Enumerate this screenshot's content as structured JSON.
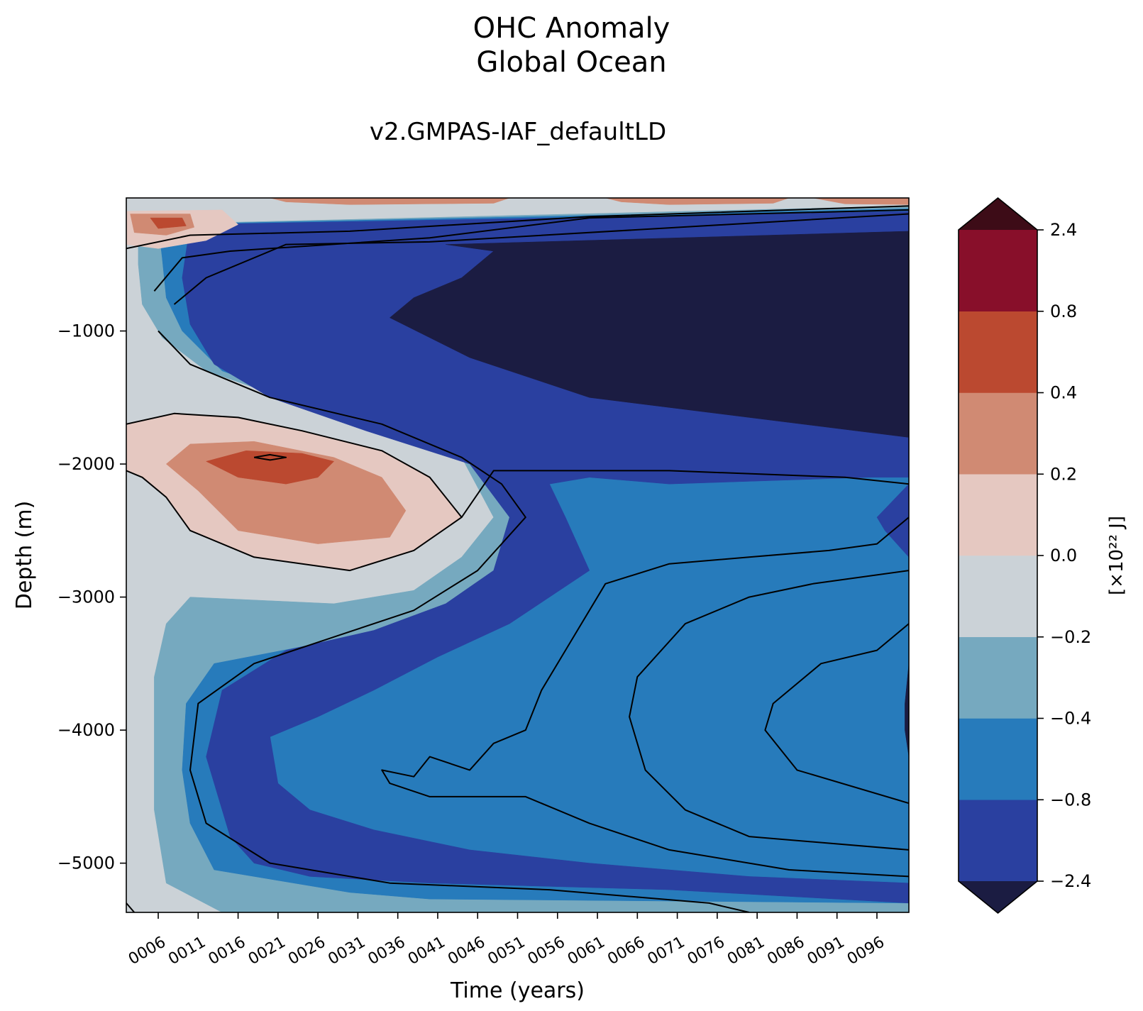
{
  "chart_data": {
    "type": "heatmap",
    "subtype": "filled-contour",
    "title": [
      "OHC Anomaly",
      "Global Ocean"
    ],
    "subtitle": "v2.GMPAS-IAF_defaultLD",
    "xlabel": "Time (years)",
    "ylabel": "Depth (m)",
    "xlim": [
      2,
      100
    ],
    "ylim": [
      -5370,
      0
    ],
    "x_ticks": [
      {
        "value": 6,
        "label": "0006"
      },
      {
        "value": 11,
        "label": "0011"
      },
      {
        "value": 16,
        "label": "0016"
      },
      {
        "value": 21,
        "label": "0021"
      },
      {
        "value": 26,
        "label": "0026"
      },
      {
        "value": 31,
        "label": "0031"
      },
      {
        "value": 36,
        "label": "0036"
      },
      {
        "value": 41,
        "label": "0041"
      },
      {
        "value": 46,
        "label": "0046"
      },
      {
        "value": 51,
        "label": "0051"
      },
      {
        "value": 56,
        "label": "0056"
      },
      {
        "value": 61,
        "label": "0061"
      },
      {
        "value": 66,
        "label": "0066"
      },
      {
        "value": 71,
        "label": "0071"
      },
      {
        "value": 76,
        "label": "0076"
      },
      {
        "value": 81,
        "label": "0081"
      },
      {
        "value": 86,
        "label": "0086"
      },
      {
        "value": 91,
        "label": "0091"
      },
      {
        "value": 96,
        "label": "0096"
      }
    ],
    "y_ticks": [
      {
        "value": -1000,
        "label": "−1000"
      },
      {
        "value": -2000,
        "label": "−2000"
      },
      {
        "value": -3000,
        "label": "−3000"
      },
      {
        "value": -4000,
        "label": "−4000"
      },
      {
        "value": -5000,
        "label": "−5000"
      }
    ],
    "grid": false,
    "colorbar": {
      "label": "[×10²² J]",
      "extend": "both",
      "levels": [
        -2.4,
        -0.8,
        -0.4,
        -0.2,
        0.0,
        0.2,
        0.4,
        0.8,
        2.4
      ],
      "tick_labels": [
        "−2.4",
        "−0.8",
        "−0.4",
        "−0.2",
        "0.0",
        "0.2",
        "0.4",
        "0.8",
        "2.4"
      ],
      "colors": [
        "#2a40a0",
        "#277bbb",
        "#76a9bf",
        "#cbd2d7",
        "#e5c8c1",
        "#d08a73",
        "#bb4930",
        "#880f2a"
      ],
      "under_color": "#1b1c42",
      "over_color": "#3d0c17"
    },
    "bands": [
      {
        "level": -0.2,
        "color": "#cbd2d7",
        "polygon": [
          [
            2,
            0
          ],
          [
            100,
            0
          ],
          [
            100,
            -5370
          ],
          [
            2,
            -5370
          ]
        ]
      },
      {
        "level": -0.4,
        "color": "#76a9bf",
        "polygon": [
          [
            3.5,
            -200
          ],
          [
            100,
            -60
          ],
          [
            100,
            -5370
          ],
          [
            14,
            -5370
          ],
          [
            7,
            -5150
          ],
          [
            5.5,
            -4600
          ],
          [
            5.5,
            -3600
          ],
          [
            7,
            -3200
          ],
          [
            10,
            -3000
          ],
          [
            28,
            -3050
          ],
          [
            38,
            -2950
          ],
          [
            44,
            -2700
          ],
          [
            48,
            -2400
          ],
          [
            44,
            -1950
          ],
          [
            36,
            -1700
          ],
          [
            24,
            -1550
          ],
          [
            12,
            -1300
          ],
          [
            6.5,
            -1050
          ],
          [
            4,
            -800
          ],
          [
            3.5,
            -500
          ]
        ]
      },
      {
        "level": -0.8,
        "color": "#277bbb",
        "polygon": [
          [
            6,
            -200
          ],
          [
            100,
            -80
          ],
          [
            100,
            -5300
          ],
          [
            40,
            -5270
          ],
          [
            30,
            -5220
          ],
          [
            13,
            -5050
          ],
          [
            10,
            -4700
          ],
          [
            9,
            -4300
          ],
          [
            9.5,
            -3800
          ],
          [
            13,
            -3500
          ],
          [
            26,
            -3350
          ],
          [
            38,
            -3200
          ],
          [
            47,
            -2950
          ],
          [
            52,
            -2400
          ],
          [
            50,
            -2150
          ],
          [
            38,
            -1750
          ],
          [
            26,
            -1550
          ],
          [
            14,
            -1300
          ],
          [
            9,
            -1000
          ],
          [
            7,
            -750
          ],
          [
            6.5,
            -450
          ]
        ]
      },
      {
        "level": -2.4,
        "color": "#2a40a0",
        "polygon": [
          [
            10,
            -200
          ],
          [
            100,
            -100
          ],
          [
            100,
            -2100
          ],
          [
            95,
            -2100
          ],
          [
            70,
            -2150
          ],
          [
            60,
            -2100
          ],
          [
            55,
            -2150
          ],
          [
            57,
            -2400
          ],
          [
            60,
            -2800
          ],
          [
            50,
            -3200
          ],
          [
            41,
            -3450
          ],
          [
            33,
            -3700
          ],
          [
            26,
            -3900
          ],
          [
            20,
            -4050
          ],
          [
            21,
            -4400
          ],
          [
            25,
            -4600
          ],
          [
            33,
            -4750
          ],
          [
            45,
            -4900
          ],
          [
            60,
            -5000
          ],
          [
            80,
            -5100
          ],
          [
            100,
            -5150
          ],
          [
            100,
            -5300
          ],
          [
            70,
            -5200
          ],
          [
            40,
            -5150
          ],
          [
            25,
            -5100
          ],
          [
            18,
            -5000
          ],
          [
            15,
            -4800
          ],
          [
            12,
            -4200
          ],
          [
            14,
            -3700
          ],
          [
            22,
            -3400
          ],
          [
            33,
            -3250
          ],
          [
            42,
            -3050
          ],
          [
            48,
            -2800
          ],
          [
            50,
            -2400
          ],
          [
            45,
            -2000
          ],
          [
            32,
            -1750
          ],
          [
            20,
            -1500
          ],
          [
            13,
            -1250
          ],
          [
            10,
            -950
          ],
          [
            9,
            -600
          ]
        ]
      },
      {
        "level": -2.4,
        "color": "#2a40a0",
        "polygon": [
          [
            96,
            -2400
          ],
          [
            100,
            -2150
          ],
          [
            100,
            -2700
          ],
          [
            97,
            -2500
          ]
        ]
      },
      {
        "level": -9.9,
        "color": "#1b1c42",
        "polygon": [
          [
            42,
            -350
          ],
          [
            100,
            -250
          ],
          [
            100,
            -1800
          ],
          [
            80,
            -1650
          ],
          [
            60,
            -1500
          ],
          [
            45,
            -1200
          ],
          [
            35,
            -900
          ],
          [
            38,
            -750
          ],
          [
            44,
            -600
          ],
          [
            48,
            -400
          ]
        ]
      },
      {
        "level": -9.9,
        "color": "#1b1c42",
        "polygon": [
          [
            99.5,
            -3800
          ],
          [
            100,
            -3500
          ],
          [
            100,
            -4200
          ],
          [
            99.5,
            -4000
          ]
        ]
      },
      {
        "level": 0.0,
        "color": "#e5c8c1",
        "polygon": [
          [
            2,
            -1700
          ],
          [
            8,
            -1620
          ],
          [
            16,
            -1650
          ],
          [
            24,
            -1750
          ],
          [
            34,
            -1900
          ],
          [
            40,
            -2100
          ],
          [
            44,
            -2400
          ],
          [
            38,
            -2650
          ],
          [
            30,
            -2800
          ],
          [
            18,
            -2700
          ],
          [
            10,
            -2500
          ],
          [
            7,
            -2250
          ],
          [
            4,
            -2100
          ],
          [
            2,
            -2050
          ]
        ]
      },
      {
        "level": 0.2,
        "color": "#d08a73",
        "polygon": [
          [
            7,
            -2000
          ],
          [
            10,
            -1850
          ],
          [
            18,
            -1830
          ],
          [
            28,
            -1950
          ],
          [
            34,
            -2100
          ],
          [
            37,
            -2350
          ],
          [
            35,
            -2550
          ],
          [
            26,
            -2600
          ],
          [
            16,
            -2500
          ],
          [
            11,
            -2200
          ]
        ]
      },
      {
        "level": 0.4,
        "color": "#bb4930",
        "polygon": [
          [
            12,
            -1980
          ],
          [
            17,
            -1900
          ],
          [
            24,
            -1920
          ],
          [
            28,
            -1980
          ],
          [
            26,
            -2100
          ],
          [
            22,
            -2150
          ],
          [
            16,
            -2100
          ]
        ]
      },
      {
        "level": 0.0,
        "color": "#e5c8c1",
        "polygon": [
          [
            2,
            -100
          ],
          [
            14,
            -90
          ],
          [
            16,
            -200
          ],
          [
            12,
            -320
          ],
          [
            6,
            -380
          ],
          [
            2,
            -350
          ]
        ]
      },
      {
        "level": 0.2,
        "color": "#d08a73",
        "polygon": [
          [
            2.5,
            -120
          ],
          [
            10,
            -120
          ],
          [
            10.5,
            -220
          ],
          [
            7,
            -280
          ],
          [
            3,
            -260
          ]
        ]
      },
      {
        "level": 0.4,
        "color": "#bb4930",
        "polygon": [
          [
            5,
            -150
          ],
          [
            9,
            -150
          ],
          [
            9.5,
            -210
          ],
          [
            6,
            -230
          ]
        ]
      },
      {
        "level": 0.2,
        "color": "#d08a73",
        "polygon": [
          [
            20,
            0
          ],
          [
            50,
            0
          ],
          [
            48,
            -40
          ],
          [
            30,
            -50
          ],
          [
            22,
            -30
          ]
        ]
      },
      {
        "level": 0.2,
        "color": "#d08a73",
        "polygon": [
          [
            62,
            0
          ],
          [
            85,
            0
          ],
          [
            83,
            -40
          ],
          [
            70,
            -50
          ],
          [
            64,
            -30
          ]
        ]
      },
      {
        "level": 0.2,
        "color": "#d08a73",
        "polygon": [
          [
            88,
            0
          ],
          [
            100,
            0
          ],
          [
            100,
            -50
          ],
          [
            92,
            -45
          ]
        ]
      }
    ],
    "contour_lines": [
      [
        [
          2,
          -1700
        ],
        [
          8,
          -1620
        ],
        [
          16,
          -1650
        ],
        [
          24,
          -1750
        ],
        [
          34,
          -1900
        ],
        [
          40,
          -2100
        ],
        [
          44,
          -2400
        ],
        [
          38,
          -2650
        ],
        [
          30,
          -2800
        ],
        [
          18,
          -2700
        ],
        [
          10,
          -2500
        ],
        [
          7,
          -2250
        ],
        [
          4,
          -2100
        ],
        [
          2,
          -2050
        ]
      ],
      [
        [
          18,
          -1950
        ],
        [
          20,
          -1930
        ],
        [
          22,
          -1950
        ],
        [
          20,
          -1970
        ],
        [
          18,
          -1950
        ]
      ],
      [
        [
          2,
          -380
        ],
        [
          10,
          -280
        ],
        [
          30,
          -250
        ],
        [
          60,
          -140
        ],
        [
          100,
          -60
        ]
      ],
      [
        [
          5.5,
          -700
        ],
        [
          9,
          -450
        ],
        [
          15,
          -400
        ],
        [
          40,
          -300
        ],
        [
          60,
          -150
        ],
        [
          100,
          -90
        ]
      ],
      [
        [
          8,
          -800
        ],
        [
          12,
          -600
        ],
        [
          22,
          -350
        ],
        [
          40,
          -330
        ],
        [
          100,
          -120
        ]
      ],
      [
        [
          44,
          -2400
        ],
        [
          48,
          -2050
        ],
        [
          58,
          -2050
        ],
        [
          70,
          -2050
        ],
        [
          92,
          -2100
        ],
        [
          100,
          -2150
        ]
      ],
      [
        [
          2,
          -5300
        ],
        [
          3,
          -5370
        ]
      ],
      [
        [
          6,
          -1000
        ],
        [
          10,
          -1250
        ],
        [
          20,
          -1500
        ],
        [
          34,
          -1700
        ],
        [
          44,
          -1950
        ],
        [
          49,
          -2150
        ],
        [
          52,
          -2400
        ],
        [
          46,
          -2800
        ],
        [
          38,
          -3100
        ],
        [
          28,
          -3300
        ],
        [
          18,
          -3500
        ],
        [
          11,
          -3800
        ],
        [
          10,
          -4300
        ],
        [
          12,
          -4700
        ],
        [
          20,
          -5000
        ],
        [
          35,
          -5150
        ],
        [
          55,
          -5200
        ],
        [
          75,
          -5300
        ],
        [
          80,
          -5370
        ]
      ],
      [
        [
          100,
          -2400
        ],
        [
          96,
          -2600
        ],
        [
          90,
          -2650
        ],
        [
          80,
          -2700
        ],
        [
          70,
          -2750
        ],
        [
          62,
          -2900
        ],
        [
          57,
          -3400
        ],
        [
          54,
          -3700
        ],
        [
          52,
          -4000
        ],
        [
          48,
          -4100
        ],
        [
          45,
          -4300
        ],
        [
          40,
          -4200
        ],
        [
          38,
          -4350
        ],
        [
          34,
          -4300
        ],
        [
          35,
          -4400
        ],
        [
          40,
          -4500
        ],
        [
          52,
          -4500
        ],
        [
          60,
          -4700
        ],
        [
          70,
          -4900
        ],
        [
          85,
          -5050
        ],
        [
          100,
          -5100
        ]
      ],
      [
        [
          100,
          -2800
        ],
        [
          88,
          -2900
        ],
        [
          80,
          -3000
        ],
        [
          72,
          -3200
        ],
        [
          66,
          -3600
        ],
        [
          65,
          -3900
        ],
        [
          67,
          -4300
        ],
        [
          72,
          -4600
        ],
        [
          80,
          -4800
        ],
        [
          100,
          -4900
        ]
      ],
      [
        [
          100,
          -3200
        ],
        [
          96,
          -3400
        ],
        [
          89,
          -3500
        ],
        [
          83,
          -3800
        ],
        [
          82,
          -4000
        ],
        [
          86,
          -4300
        ],
        [
          100,
          -4550
        ]
      ]
    ]
  }
}
